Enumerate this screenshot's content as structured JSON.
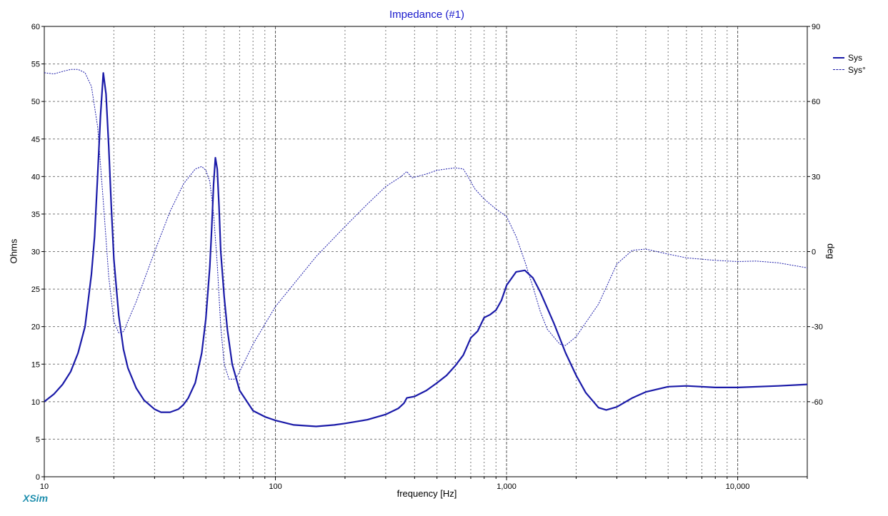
{
  "chart_data": {
    "type": "line",
    "title": "Impedance (#1)",
    "xlabel": "frequency [Hz]",
    "ylabel": "Ohms",
    "y2label": "deg",
    "x_scale": "log",
    "xlim": [
      10,
      20000
    ],
    "ylim": [
      0,
      60
    ],
    "y2lim": [
      -90,
      90
    ],
    "x_ticks": [
      {
        "value": 10,
        "label": "10"
      },
      {
        "value": 100,
        "label": "100"
      },
      {
        "value": 1000,
        "label": "1,000"
      },
      {
        "value": 10000,
        "label": "10,000"
      }
    ],
    "y_ticks": [
      0,
      5,
      10,
      15,
      20,
      25,
      30,
      35,
      40,
      45,
      50,
      55,
      60
    ],
    "y2_ticks": [
      -60,
      -30,
      0,
      30,
      60,
      90
    ],
    "grid": true,
    "legend_position": "top-right",
    "series": [
      {
        "name": "Sys",
        "axis": "left",
        "style": "solid",
        "color": "#1a1aa8",
        "points": [
          [
            10,
            10.0
          ],
          [
            11,
            11.0
          ],
          [
            12,
            12.3
          ],
          [
            13,
            14.0
          ],
          [
            14,
            16.5
          ],
          [
            15,
            20.0
          ],
          [
            16,
            27.0
          ],
          [
            16.5,
            32.0
          ],
          [
            17,
            40.0
          ],
          [
            17.5,
            48.0
          ],
          [
            18,
            53.8
          ],
          [
            18.5,
            51.0
          ],
          [
            19,
            44.0
          ],
          [
            19.5,
            36.0
          ],
          [
            20,
            29.0
          ],
          [
            21,
            21.5
          ],
          [
            22,
            17.0
          ],
          [
            23,
            14.5
          ],
          [
            25,
            11.8
          ],
          [
            27,
            10.2
          ],
          [
            30,
            9.0
          ],
          [
            32,
            8.6
          ],
          [
            35,
            8.6
          ],
          [
            38,
            9.0
          ],
          [
            40,
            9.6
          ],
          [
            42,
            10.5
          ],
          [
            45,
            12.5
          ],
          [
            48,
            16.5
          ],
          [
            50,
            21.0
          ],
          [
            52,
            28.0
          ],
          [
            53,
            33.0
          ],
          [
            54,
            39.0
          ],
          [
            55,
            42.5
          ],
          [
            56,
            41.0
          ],
          [
            57,
            36.0
          ],
          [
            58,
            30.0
          ],
          [
            60,
            24.0
          ],
          [
            62,
            19.5
          ],
          [
            65,
            15.0
          ],
          [
            70,
            11.5
          ],
          [
            80,
            8.8
          ],
          [
            90,
            8.0
          ],
          [
            100,
            7.5
          ],
          [
            120,
            6.9
          ],
          [
            150,
            6.7
          ],
          [
            180,
            6.9
          ],
          [
            200,
            7.1
          ],
          [
            250,
            7.6
          ],
          [
            300,
            8.3
          ],
          [
            340,
            9.1
          ],
          [
            360,
            9.8
          ],
          [
            370,
            10.5
          ],
          [
            400,
            10.7
          ],
          [
            450,
            11.5
          ],
          [
            500,
            12.5
          ],
          [
            550,
            13.5
          ],
          [
            600,
            14.8
          ],
          [
            650,
            16.2
          ],
          [
            700,
            18.5
          ],
          [
            750,
            19.4
          ],
          [
            800,
            21.2
          ],
          [
            850,
            21.6
          ],
          [
            900,
            22.2
          ],
          [
            950,
            23.5
          ],
          [
            1000,
            25.5
          ],
          [
            1100,
            27.3
          ],
          [
            1200,
            27.5
          ],
          [
            1300,
            26.5
          ],
          [
            1400,
            24.6
          ],
          [
            1600,
            20.5
          ],
          [
            1800,
            16.5
          ],
          [
            2000,
            13.5
          ],
          [
            2200,
            11.2
          ],
          [
            2500,
            9.2
          ],
          [
            2700,
            8.9
          ],
          [
            3000,
            9.3
          ],
          [
            3500,
            10.5
          ],
          [
            4000,
            11.3
          ],
          [
            5000,
            12.0
          ],
          [
            6000,
            12.1
          ],
          [
            8000,
            11.9
          ],
          [
            10000,
            11.9
          ],
          [
            15000,
            12.1
          ],
          [
            20000,
            12.3
          ]
        ]
      },
      {
        "name": "Sys°",
        "axis": "right",
        "style": "dashed",
        "color": "#1a1aa8",
        "points": [
          [
            10,
            71.5
          ],
          [
            11,
            71.0
          ],
          [
            12,
            72.0
          ],
          [
            13,
            72.8
          ],
          [
            14,
            72.8
          ],
          [
            15,
            71.5
          ],
          [
            16,
            66.0
          ],
          [
            17,
            50.0
          ],
          [
            18,
            20.0
          ],
          [
            19,
            -10.0
          ],
          [
            20,
            -28.0
          ],
          [
            21,
            -32.5
          ],
          [
            22,
            -32.0
          ],
          [
            25,
            -20.0
          ],
          [
            30,
            0.0
          ],
          [
            35,
            16.0
          ],
          [
            40,
            27.0
          ],
          [
            45,
            33.0
          ],
          [
            48,
            34.0
          ],
          [
            50,
            32.5
          ],
          [
            52,
            28.0
          ],
          [
            54,
            15.0
          ],
          [
            56,
            -5.0
          ],
          [
            58,
            -30.0
          ],
          [
            60,
            -45.0
          ],
          [
            63,
            -51.0
          ],
          [
            67,
            -51.0
          ],
          [
            70,
            -48.0
          ],
          [
            80,
            -37.0
          ],
          [
            100,
            -22.0
          ],
          [
            150,
            -2.0
          ],
          [
            200,
            10.0
          ],
          [
            250,
            19.0
          ],
          [
            300,
            26.0
          ],
          [
            350,
            30.0
          ],
          [
            370,
            32.0
          ],
          [
            390,
            29.5
          ],
          [
            450,
            31.0
          ],
          [
            500,
            32.5
          ],
          [
            600,
            33.5
          ],
          [
            650,
            33.0
          ],
          [
            680,
            30.0
          ],
          [
            730,
            25.0
          ],
          [
            800,
            21.0
          ],
          [
            900,
            17.0
          ],
          [
            1000,
            14.0
          ],
          [
            1100,
            6.0
          ],
          [
            1200,
            -4.0
          ],
          [
            1300,
            -14.0
          ],
          [
            1400,
            -24.0
          ],
          [
            1500,
            -31.0
          ],
          [
            1700,
            -37.0
          ],
          [
            1800,
            -37.5
          ],
          [
            2000,
            -34.0
          ],
          [
            2500,
            -21.0
          ],
          [
            3000,
            -5.0
          ],
          [
            3500,
            0.5
          ],
          [
            4000,
            1.0
          ],
          [
            5000,
            -1.0
          ],
          [
            6000,
            -2.5
          ],
          [
            8000,
            -3.5
          ],
          [
            10000,
            -4.0
          ],
          [
            12000,
            -3.8
          ],
          [
            15000,
            -4.5
          ],
          [
            20000,
            -6.5
          ]
        ]
      }
    ]
  },
  "footer": {
    "brand": "XSim"
  }
}
